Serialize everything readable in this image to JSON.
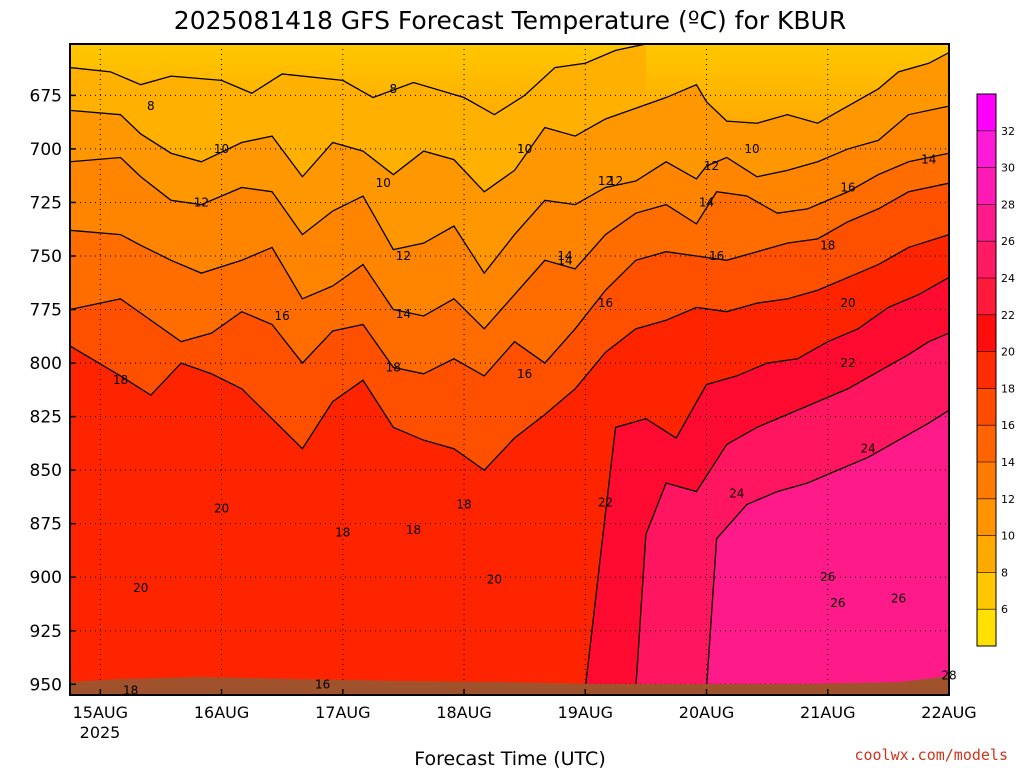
{
  "chart_data": {
    "type": "heatmap",
    "title": "2025081418 GFS Forecast Temperature (ºC) for KBUR",
    "xlabel": "Forecast Time (UTC)",
    "ylabel": "",
    "x_ticks": [
      "15AUG",
      "16AUG",
      "17AUG",
      "18AUG",
      "19AUG",
      "20AUG",
      "21AUG",
      "22AUG"
    ],
    "x_year_label": "2025",
    "xlim": [
      "2025-08-14T18:00",
      "2025-08-22T00:00"
    ],
    "y_ticks": [
      675,
      700,
      725,
      750,
      775,
      800,
      825,
      850,
      875,
      900,
      925,
      950
    ],
    "ylim": [
      955,
      651
    ],
    "y_units": "hPa",
    "grid": true,
    "colorbar_levels": [
      6,
      8,
      10,
      12,
      14,
      16,
      18,
      20,
      22,
      24,
      26,
      28,
      30,
      32
    ],
    "colorbar_colors": [
      "#ffe000",
      "#ffc800",
      "#ffaa00",
      "#ff9400",
      "#ff7c00",
      "#ff6400",
      "#ff4c00",
      "#ff2c00",
      "#ff0c0c",
      "#ff1a3c",
      "#ff1a64",
      "#ff1a8c",
      "#ff1ab4",
      "#ff1ad8",
      "#ff00ff"
    ],
    "contour_labels": [
      "8",
      "8",
      "10",
      "10",
      "10",
      "10",
      "12",
      "12",
      "12",
      "12",
      "14",
      "14",
      "14",
      "16",
      "16",
      "16",
      "16",
      "18",
      "18",
      "18",
      "18",
      "18",
      "20",
      "20",
      "20",
      "22",
      "22",
      "24",
      "24",
      "26",
      "26",
      "26",
      "16",
      "18",
      "28",
      "12",
      "14",
      "16",
      "18",
      "20",
      "14"
    ],
    "contours": [
      {
        "level": 8,
        "points": [
          [
            "2025-08-14T18:00",
            662
          ],
          [
            "2025-08-15T02:00",
            664
          ],
          [
            "2025-08-15T08:00",
            670
          ],
          [
            "2025-08-15T14:00",
            666
          ],
          [
            "2025-08-16T00:00",
            668
          ],
          [
            "2025-08-16T06:00",
            674
          ],
          [
            "2025-08-16T12:00",
            665
          ],
          [
            "2025-08-17T00:00",
            668
          ],
          [
            "2025-08-17T06:00",
            676
          ],
          [
            "2025-08-17T14:00",
            669
          ],
          [
            "2025-08-18T00:00",
            676
          ],
          [
            "2025-08-18T06:00",
            684
          ],
          [
            "2025-08-18T12:00",
            675
          ],
          [
            "2025-08-18T18:00",
            662
          ],
          [
            "2025-08-19T00:00",
            660
          ],
          [
            "2025-08-19T06:00",
            654
          ],
          [
            "2025-08-19T12:00",
            651
          ]
        ]
      },
      {
        "level": 10,
        "points": [
          [
            "2025-08-14T18:00",
            682
          ],
          [
            "2025-08-15T04:00",
            684
          ],
          [
            "2025-08-15T08:00",
            693
          ],
          [
            "2025-08-15T14:00",
            702
          ],
          [
            "2025-08-15T20:00",
            706
          ],
          [
            "2025-08-16T04:00",
            697
          ],
          [
            "2025-08-16T10:00",
            694
          ],
          [
            "2025-08-16T16:00",
            713
          ],
          [
            "2025-08-16T22:00",
            697
          ],
          [
            "2025-08-17T04:00",
            701
          ],
          [
            "2025-08-17T10:00",
            712
          ],
          [
            "2025-08-17T16:00",
            701
          ],
          [
            "2025-08-17T22:00",
            705
          ],
          [
            "2025-08-18T04:00",
            720
          ],
          [
            "2025-08-18T10:00",
            710
          ],
          [
            "2025-08-18T16:00",
            690
          ],
          [
            "2025-08-18T22:00",
            694
          ],
          [
            "2025-08-19T04:00",
            686
          ],
          [
            "2025-08-19T10:00",
            681
          ],
          [
            "2025-08-19T16:00",
            676
          ],
          [
            "2025-08-19T22:00",
            670
          ],
          [
            "2025-08-20T00:00",
            678
          ],
          [
            "2025-08-20T04:00",
            687
          ],
          [
            "2025-08-20T10:00",
            688
          ],
          [
            "2025-08-20T16:00",
            684
          ],
          [
            "2025-08-20T22:00",
            688
          ],
          [
            "2025-08-21T04:00",
            680
          ],
          [
            "2025-08-21T10:00",
            672
          ],
          [
            "2025-08-21T14:00",
            664
          ],
          [
            "2025-08-21T20:00",
            660
          ],
          [
            "2025-08-22T00:00",
            655
          ]
        ]
      },
      {
        "level": 12,
        "points": [
          [
            "2025-08-14T18:00",
            706
          ],
          [
            "2025-08-15T04:00",
            704
          ],
          [
            "2025-08-15T08:00",
            713
          ],
          [
            "2025-08-15T14:00",
            724
          ],
          [
            "2025-08-15T20:00",
            726
          ],
          [
            "2025-08-16T04:00",
            718
          ],
          [
            "2025-08-16T10:00",
            720
          ],
          [
            "2025-08-16T16:00",
            740
          ],
          [
            "2025-08-16T22:00",
            729
          ],
          [
            "2025-08-17T04:00",
            722
          ],
          [
            "2025-08-17T10:00",
            747
          ],
          [
            "2025-08-17T16:00",
            744
          ],
          [
            "2025-08-17T22:00",
            736
          ],
          [
            "2025-08-18T04:00",
            758
          ],
          [
            "2025-08-18T10:00",
            740
          ],
          [
            "2025-08-18T16:00",
            724
          ],
          [
            "2025-08-18T22:00",
            726
          ],
          [
            "2025-08-19T04:00",
            718
          ],
          [
            "2025-08-19T10:00",
            715
          ],
          [
            "2025-08-19T16:00",
            706
          ],
          [
            "2025-08-19T22:00",
            714
          ],
          [
            "2025-08-20T00:00",
            708
          ],
          [
            "2025-08-20T04:00",
            704
          ],
          [
            "2025-08-20T10:00",
            713
          ],
          [
            "2025-08-20T16:00",
            710
          ],
          [
            "2025-08-20T22:00",
            706
          ],
          [
            "2025-08-21T04:00",
            700
          ],
          [
            "2025-08-21T10:00",
            696
          ],
          [
            "2025-08-21T16:00",
            684
          ],
          [
            "2025-08-22T00:00",
            680
          ]
        ]
      },
      {
        "level": 14,
        "points": [
          [
            "2025-08-14T18:00",
            738
          ],
          [
            "2025-08-15T04:00",
            740
          ],
          [
            "2025-08-15T08:00",
            745
          ],
          [
            "2025-08-15T14:00",
            752
          ],
          [
            "2025-08-15T20:00",
            758
          ],
          [
            "2025-08-16T04:00",
            752
          ],
          [
            "2025-08-16T10:00",
            746
          ],
          [
            "2025-08-16T16:00",
            770
          ],
          [
            "2025-08-16T22:00",
            764
          ],
          [
            "2025-08-17T04:00",
            754
          ],
          [
            "2025-08-17T10:00",
            775
          ],
          [
            "2025-08-17T16:00",
            778
          ],
          [
            "2025-08-17T22:00",
            770
          ],
          [
            "2025-08-18T04:00",
            784
          ],
          [
            "2025-08-18T10:00",
            768
          ],
          [
            "2025-08-18T16:00",
            752
          ],
          [
            "2025-08-18T22:00",
            756
          ],
          [
            "2025-08-19T04:00",
            740
          ],
          [
            "2025-08-19T10:00",
            730
          ],
          [
            "2025-08-19T16:00",
            726
          ],
          [
            "2025-08-19T22:00",
            735
          ],
          [
            "2025-08-20T02:00",
            720
          ],
          [
            "2025-08-20T08:00",
            722
          ],
          [
            "2025-08-20T14:00",
            730
          ],
          [
            "2025-08-20T20:00",
            728
          ],
          [
            "2025-08-21T04:00",
            720
          ],
          [
            "2025-08-21T10:00",
            712
          ],
          [
            "2025-08-21T16:00",
            706
          ],
          [
            "2025-08-22T00:00",
            702
          ]
        ]
      },
      {
        "level": 16,
        "points": [
          [
            "2025-08-14T18:00",
            775
          ],
          [
            "2025-08-15T04:00",
            770
          ],
          [
            "2025-08-15T10:00",
            780
          ],
          [
            "2025-08-15T16:00",
            790
          ],
          [
            "2025-08-15T22:00",
            786
          ],
          [
            "2025-08-16T04:00",
            776
          ],
          [
            "2025-08-16T10:00",
            782
          ],
          [
            "2025-08-16T16:00",
            800
          ],
          [
            "2025-08-16T22:00",
            785
          ],
          [
            "2025-08-17T04:00",
            782
          ],
          [
            "2025-08-17T10:00",
            802
          ],
          [
            "2025-08-17T16:00",
            805
          ],
          [
            "2025-08-17T22:00",
            798
          ],
          [
            "2025-08-18T04:00",
            806
          ],
          [
            "2025-08-18T10:00",
            790
          ],
          [
            "2025-08-18T16:00",
            800
          ],
          [
            "2025-08-18T22:00",
            784
          ],
          [
            "2025-08-19T04:00",
            766
          ],
          [
            "2025-08-19T10:00",
            752
          ],
          [
            "2025-08-19T16:00",
            748
          ],
          [
            "2025-08-19T22:00",
            750
          ],
          [
            "2025-08-20T04:00",
            752
          ],
          [
            "2025-08-20T10:00",
            748
          ],
          [
            "2025-08-20T16:00",
            744
          ],
          [
            "2025-08-20T22:00",
            742
          ],
          [
            "2025-08-21T04:00",
            734
          ],
          [
            "2025-08-21T10:00",
            728
          ],
          [
            "2025-08-21T16:00",
            720
          ],
          [
            "2025-08-22T00:00",
            716
          ]
        ]
      },
      {
        "level": 18,
        "points": [
          [
            "2025-08-14T18:00",
            792
          ],
          [
            "2025-08-15T04:00",
            806
          ],
          [
            "2025-08-15T10:00",
            815
          ],
          [
            "2025-08-15T16:00",
            800
          ],
          [
            "2025-08-15T22:00",
            805
          ],
          [
            "2025-08-16T04:00",
            812
          ],
          [
            "2025-08-16T10:00",
            826
          ],
          [
            "2025-08-16T16:00",
            840
          ],
          [
            "2025-08-16T22:00",
            818
          ],
          [
            "2025-08-17T04:00",
            808
          ],
          [
            "2025-08-17T10:00",
            830
          ],
          [
            "2025-08-17T16:00",
            836
          ],
          [
            "2025-08-17T22:00",
            840
          ],
          [
            "2025-08-18T04:00",
            850
          ],
          [
            "2025-08-18T10:00",
            835
          ],
          [
            "2025-08-18T16:00",
            824
          ],
          [
            "2025-08-18T22:00",
            812
          ],
          [
            "2025-08-19T04:00",
            795
          ],
          [
            "2025-08-19T10:00",
            784
          ],
          [
            "2025-08-19T16:00",
            780
          ],
          [
            "2025-08-19T22:00",
            774
          ],
          [
            "2025-08-20T04:00",
            776
          ],
          [
            "2025-08-20T10:00",
            772
          ],
          [
            "2025-08-20T16:00",
            770
          ],
          [
            "2025-08-20T22:00",
            766
          ],
          [
            "2025-08-21T04:00",
            760
          ],
          [
            "2025-08-21T10:00",
            754
          ],
          [
            "2025-08-21T16:00",
            746
          ],
          [
            "2025-08-22T00:00",
            740
          ]
        ]
      },
      {
        "level": 20,
        "points": [
          [
            "2025-08-19T00:00",
            952
          ],
          [
            "2025-08-19T04:00",
            870
          ],
          [
            "2025-08-19T06:00",
            830
          ],
          [
            "2025-08-19T12:00",
            826
          ],
          [
            "2025-08-19T18:00",
            835
          ],
          [
            "2025-08-20T00:00",
            810
          ],
          [
            "2025-08-20T06:00",
            806
          ],
          [
            "2025-08-20T12:00",
            800
          ],
          [
            "2025-08-20T18:00",
            798
          ],
          [
            "2025-08-21T00:00",
            790
          ],
          [
            "2025-08-21T06:00",
            784
          ],
          [
            "2025-08-21T12:00",
            774
          ],
          [
            "2025-08-21T18:00",
            768
          ],
          [
            "2025-08-22T00:00",
            760
          ]
        ]
      },
      {
        "level": 22,
        "points": [
          [
            "2025-08-19T10:00",
            952
          ],
          [
            "2025-08-19T12:00",
            880
          ],
          [
            "2025-08-19T16:00",
            856
          ],
          [
            "2025-08-19T22:00",
            860
          ],
          [
            "2025-08-20T04:00",
            838
          ],
          [
            "2025-08-20T10:00",
            830
          ],
          [
            "2025-08-20T16:00",
            824
          ],
          [
            "2025-08-20T22:00",
            818
          ],
          [
            "2025-08-21T04:00",
            812
          ],
          [
            "2025-08-21T10:00",
            804
          ],
          [
            "2025-08-21T16:00",
            796
          ],
          [
            "2025-08-21T20:00",
            790
          ],
          [
            "2025-08-22T00:00",
            786
          ]
        ]
      },
      {
        "level": 24,
        "points": [
          [
            "2025-08-20T00:00",
            952
          ],
          [
            "2025-08-20T02:00",
            882
          ],
          [
            "2025-08-20T08:00",
            866
          ],
          [
            "2025-08-20T14:00",
            860
          ],
          [
            "2025-08-20T20:00",
            856
          ],
          [
            "2025-08-21T02:00",
            850
          ],
          [
            "2025-08-21T08:00",
            844
          ],
          [
            "2025-08-21T14:00",
            836
          ],
          [
            "2025-08-21T20:00",
            828
          ],
          [
            "2025-08-22T00:00",
            822
          ]
        ]
      }
    ]
  },
  "credit": "coolwx.com/models"
}
